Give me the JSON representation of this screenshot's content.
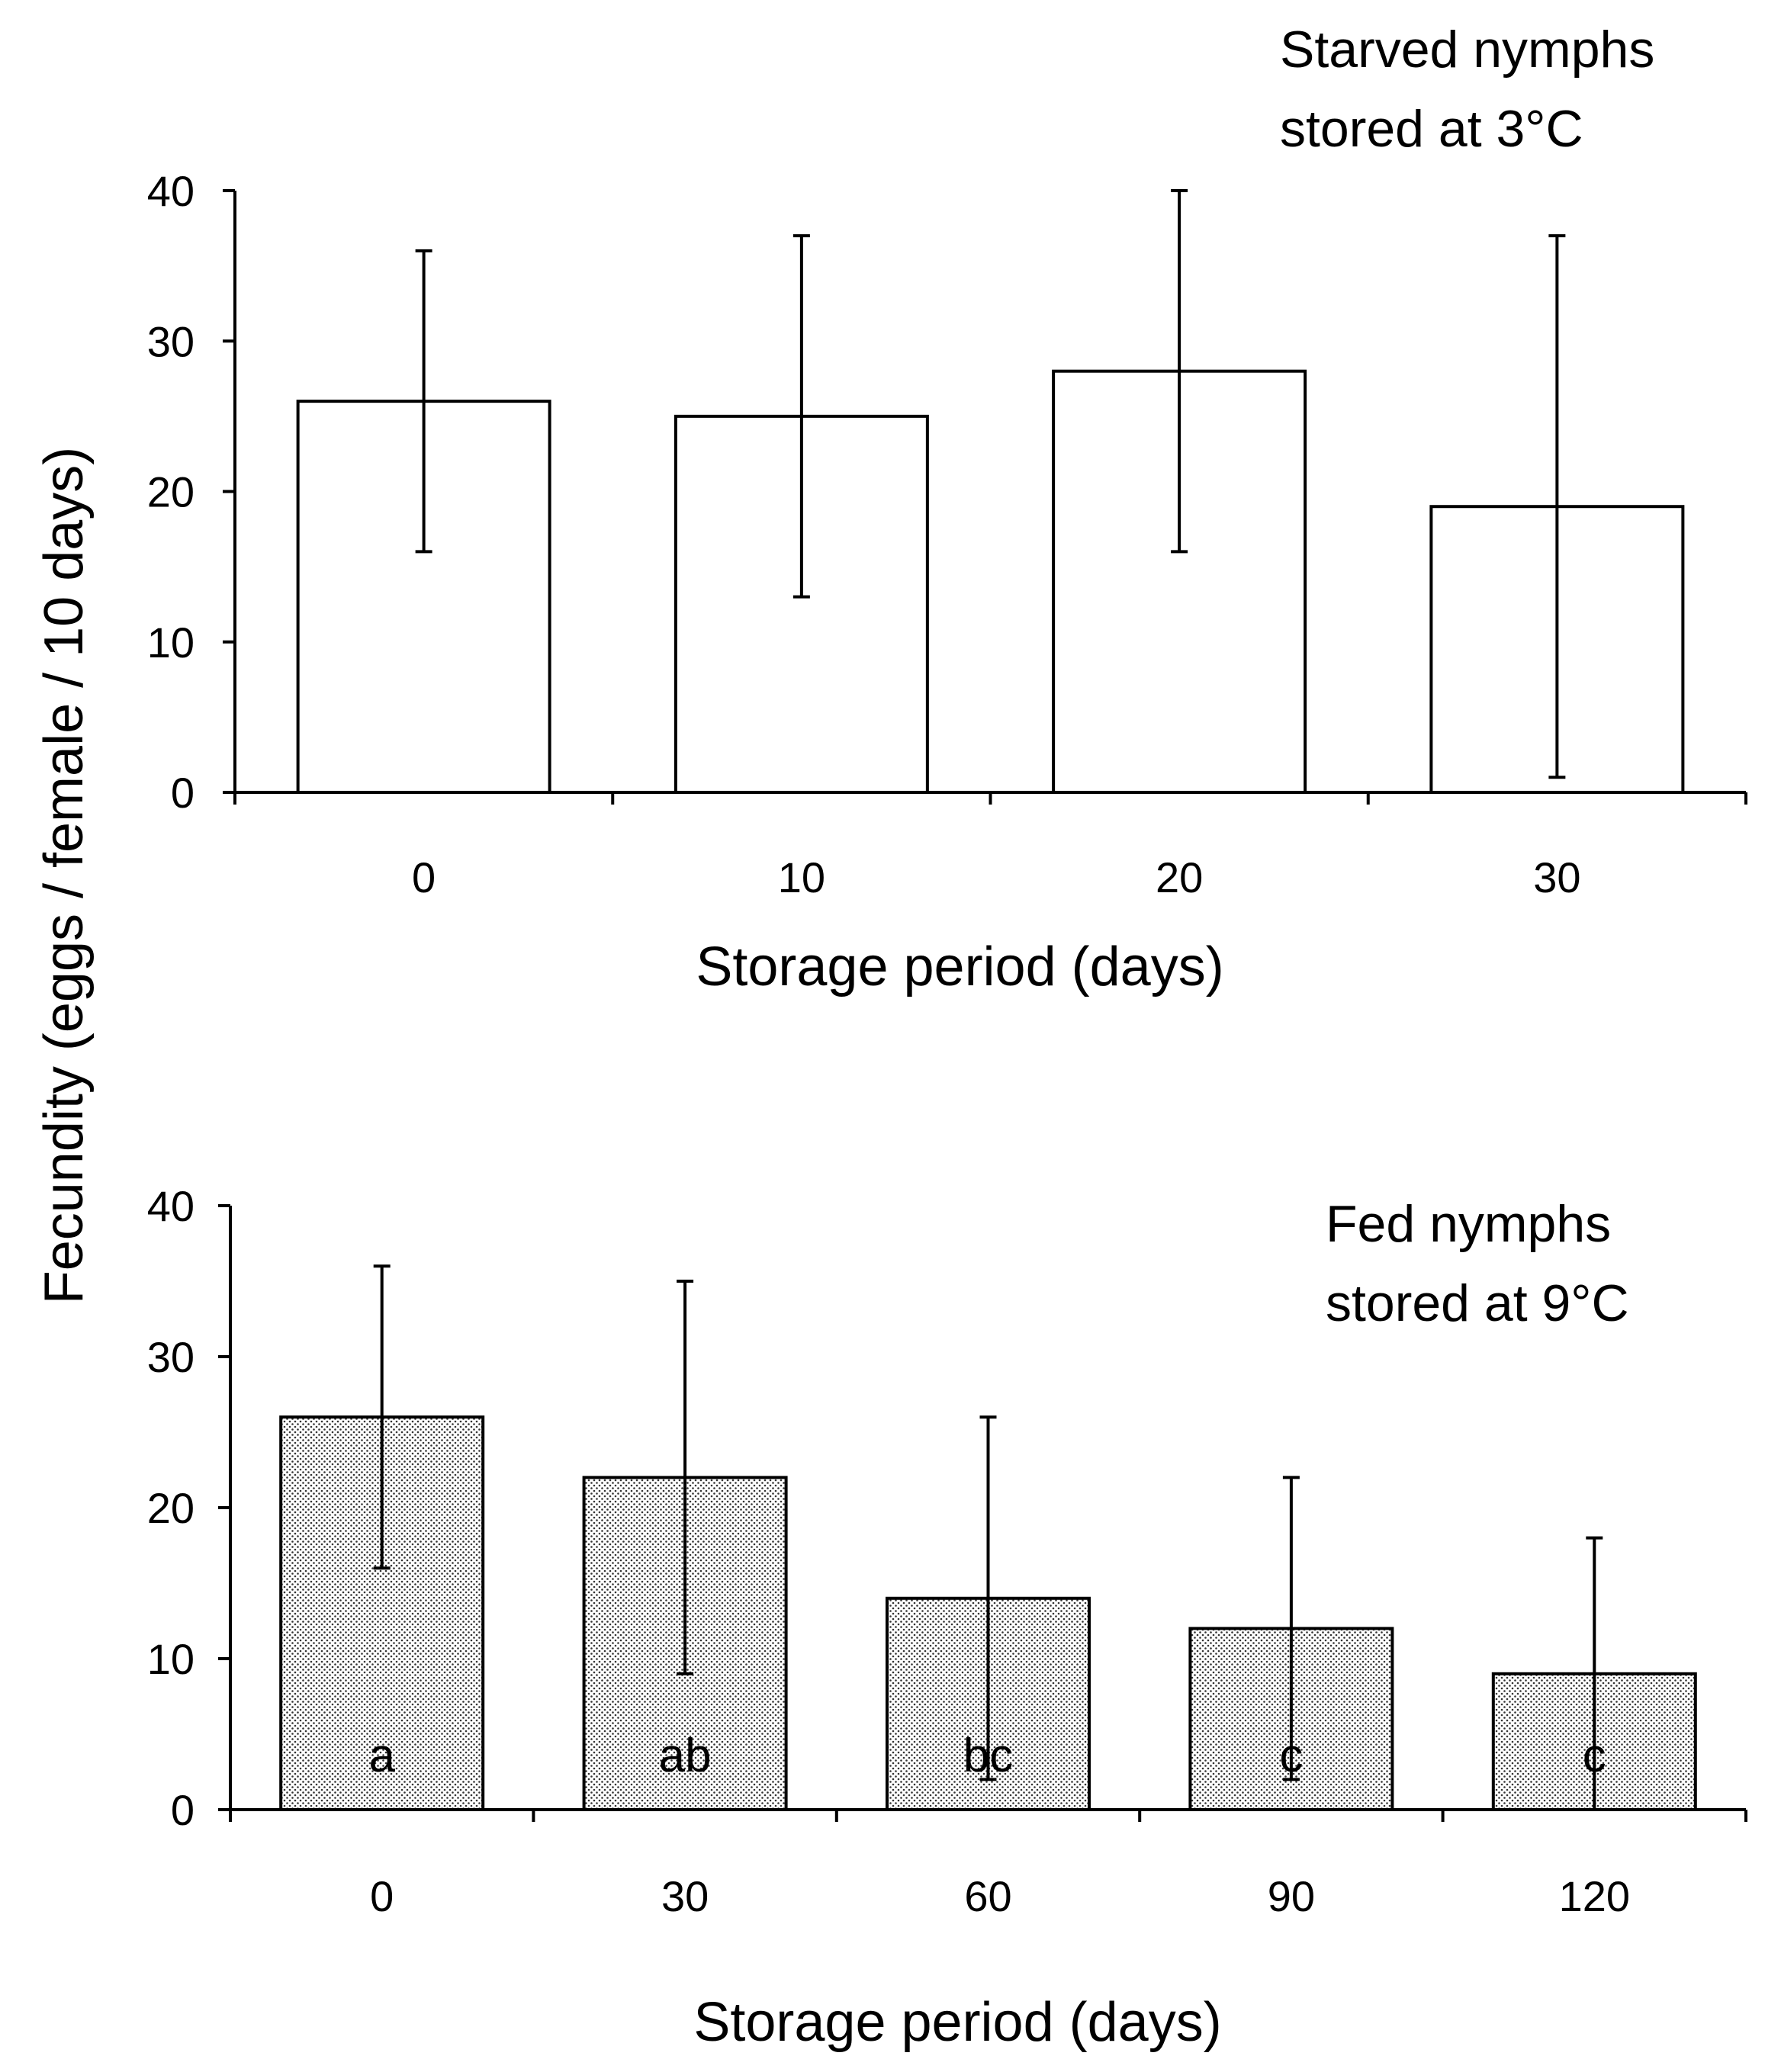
{
  "shared_ylabel": "Fecundity (eggs / female / 10 days)",
  "chart_data": [
    {
      "type": "bar",
      "title": "Starved nymphs stored at 3°C",
      "annotation_lines": [
        "Starved nymphs",
        "stored at 3°C"
      ],
      "xlabel": "Storage period (days)",
      "ylabel": "Fecundity (eggs / female / 10 days)",
      "categories": [
        "0",
        "10",
        "20",
        "30"
      ],
      "values": [
        26,
        25,
        28,
        19
      ],
      "error_upper": [
        36,
        37,
        40,
        37
      ],
      "error_lower": [
        16,
        13,
        16,
        1
      ],
      "significance_letters": [],
      "yticks": [
        "0",
        "10",
        "20",
        "30",
        "40"
      ],
      "ylim": [
        0,
        40
      ],
      "bar_fill": "white",
      "grid": false
    },
    {
      "type": "bar",
      "title": "Fed nymphs stored at 9°C",
      "annotation_lines": [
        "Fed nymphs",
        "stored at 9°C"
      ],
      "xlabel": "Storage period (days)",
      "ylabel": "Fecundity (eggs / female / 10 days)",
      "categories": [
        "0",
        "30",
        "60",
        "90",
        "120"
      ],
      "values": [
        26,
        22,
        14,
        12,
        9
      ],
      "error_upper": [
        36,
        35,
        26,
        22,
        18
      ],
      "error_lower": [
        16,
        9,
        2,
        2,
        0
      ],
      "significance_letters": [
        "a",
        "ab",
        "bc",
        "c",
        "c"
      ],
      "yticks": [
        "0",
        "10",
        "20",
        "30",
        "40"
      ],
      "ylim": [
        0,
        40
      ],
      "bar_fill": "dotted",
      "grid": false
    }
  ]
}
